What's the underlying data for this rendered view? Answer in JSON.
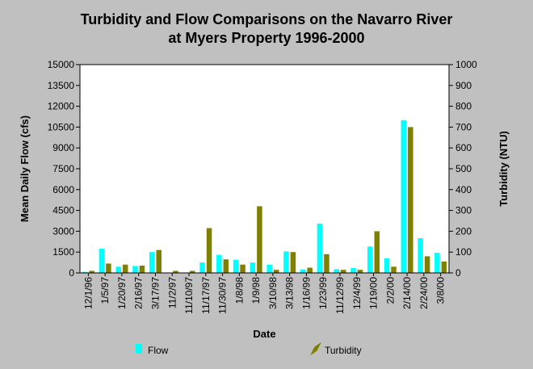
{
  "chart_data": {
    "type": "bar",
    "title_lines": [
      "Turbidity and Flow Comparisons on the Navarro River",
      "at Myers Property 1996-2000"
    ],
    "xlabel": "Date",
    "ylabel_left": "Mean Daily Flow (cfs)",
    "ylabel_right": "Turbidity (NTU)",
    "y_left_ticks": [
      0,
      1500,
      3000,
      4500,
      6000,
      7500,
      9000,
      10500,
      12000,
      13500,
      15000
    ],
    "y_right_ticks": [
      0,
      100,
      200,
      300,
      400,
      500,
      600,
      700,
      800,
      900,
      1000
    ],
    "ylim_left": [
      0,
      15000
    ],
    "ylim_right": [
      0,
      1000
    ],
    "legend_position": "bottom",
    "grid": false,
    "categories": [
      "12/1/96",
      "1/5/97",
      "1/20/97",
      "2/16/97",
      "3/17/97",
      "11/2/97",
      "11/10/97",
      "11/17/97",
      "11/30/97",
      "1/8/98",
      "1/9/98",
      "3/10/98",
      "3/13/98",
      "1/16/99",
      "1/23/99",
      "11/12/99",
      "12/4/99",
      "1/19/00",
      "2/2/00",
      "2/14/00",
      "2/24/00",
      "3/8/00"
    ],
    "series": [
      {
        "name": "Flow",
        "axis": "left",
        "color": "#00ffff",
        "values": [
          80,
          1750,
          450,
          500,
          1500,
          0,
          20,
          750,
          1300,
          950,
          750,
          600,
          1550,
          250,
          3550,
          270,
          350,
          1900,
          1050,
          11000,
          2500,
          1450
        ]
      },
      {
        "name": "Turbidity",
        "axis": "right",
        "color": "#808000",
        "values": [
          10,
          45,
          40,
          35,
          110,
          10,
          10,
          215,
          65,
          40,
          320,
          15,
          100,
          25,
          90,
          15,
          15,
          200,
          30,
          700,
          80,
          55
        ]
      }
    ]
  }
}
